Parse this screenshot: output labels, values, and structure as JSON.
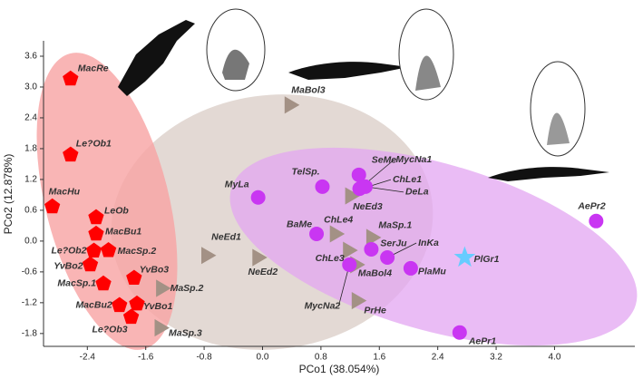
{
  "chart_data": {
    "type": "scatter",
    "xlabel": "PCo1 (38.054%)",
    "ylabel": "PCo2 (12.878%)",
    "xlim": [
      -3.0,
      5.1
    ],
    "ylim": [
      -2.05,
      3.9
    ],
    "xticks": [
      -2.4,
      -1.6,
      -0.8,
      {
        "value": 0,
        "label": "0.0"
      },
      0.8,
      1.6,
      2.4,
      3.2,
      {
        "value": 4,
        "label": "4.0"
      }
    ],
    "yticks": [
      {
        "value": 3.6,
        "label": "3.6"
      },
      {
        "value": 3,
        "label": "3.0"
      },
      2.4,
      1.8,
      1.2,
      0.6,
      {
        "value": 0,
        "label": "0.0"
      },
      -0.6,
      -1.2,
      -1.8
    ],
    "series": [
      {
        "marker": "pentagon",
        "color": "#ff0000",
        "labels": [
          "MacRe",
          "Le?Ob1",
          "MacHu",
          "LeOb",
          "MacBu1",
          "Le?Ob2",
          "MacSp.2",
          "YvBo2",
          "YvBo3",
          "MacSp.1",
          "YvBo1",
          "MacBu2",
          "Le?Ob3"
        ],
        "x": [
          -2.63,
          -2.63,
          -2.88,
          -2.28,
          -2.28,
          -2.31,
          -2.11,
          -2.36,
          -1.76,
          -2.18,
          -1.72,
          -1.96,
          -1.8
        ],
        "values": [
          3.16,
          1.68,
          0.67,
          0.46,
          0.14,
          -0.19,
          -0.18,
          -0.46,
          -0.72,
          -0.83,
          -1.22,
          -1.25,
          -1.48
        ]
      },
      {
        "marker": "triangle",
        "color": "#a39185",
        "labels": [
          "MaBol3",
          "NeEd1",
          "NeEd2",
          "MaSp.2",
          "MaSp.3",
          "NeEd3",
          "ChLe1",
          "ChLe4",
          "MaSp.1",
          "ChLe3",
          "MaBol4",
          "PrHe"
        ],
        "x": [
          0.37,
          -0.77,
          -0.07,
          -1.39,
          -1.41,
          1.2,
          1.36,
          0.99,
          1.49,
          1.17,
          1.27,
          1.29
        ],
        "values": [
          2.65,
          -0.28,
          -0.32,
          -0.92,
          -1.69,
          0.88,
          1.02,
          0.14,
          0.07,
          -0.18,
          -0.46,
          -1.16
        ]
      },
      {
        "marker": "circle",
        "color": "#c936f2",
        "labels": [
          "MyLa",
          "TelSp.",
          "SeMe",
          "MycNa1",
          "DeLa",
          "BaMe",
          "SerJu",
          "InKa",
          "PlaMu",
          "MycNa2",
          "AePr2",
          "AePr1"
        ],
        "x": [
          -0.06,
          0.82,
          1.32,
          1.33,
          1.41,
          0.74,
          1.49,
          1.71,
          2.03,
          1.19,
          4.57,
          2.7
        ],
        "values": [
          0.85,
          1.06,
          1.29,
          1.02,
          1.06,
          0.14,
          -0.16,
          -0.32,
          -0.53,
          -0.46,
          0.39,
          -1.78
        ]
      },
      {
        "marker": "star",
        "color": "#66ccff",
        "labels": [
          "PlGr1"
        ],
        "x": [
          2.77
        ],
        "values": [
          -0.32
        ]
      }
    ]
  }
}
